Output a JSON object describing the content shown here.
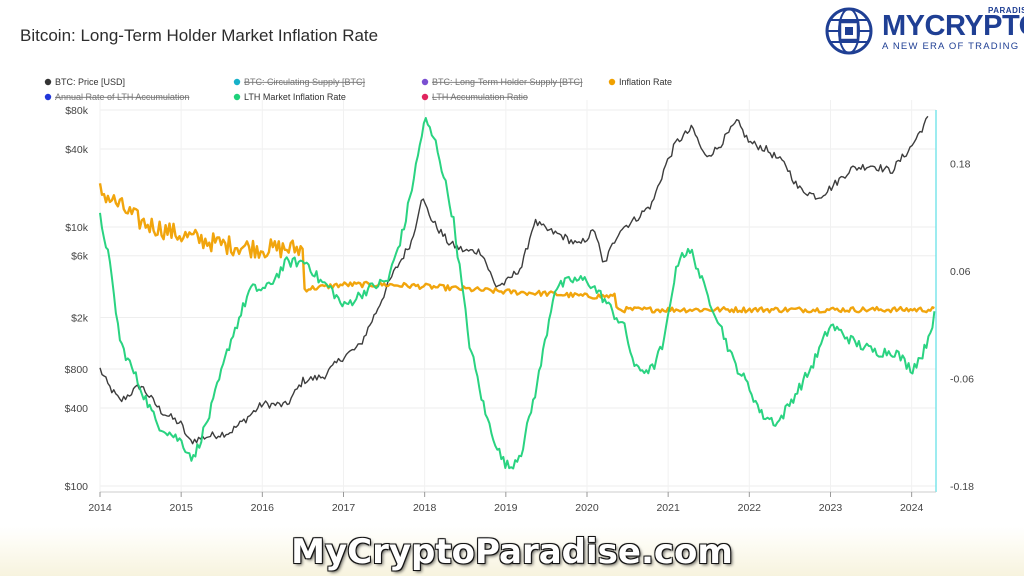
{
  "header": {
    "title": "Bitcoin: Long-Term Holder Market Inflation Rate"
  },
  "brand": {
    "name": "MYCRYPTO",
    "sub": "PARADISE",
    "tagline": "A NEW ERA OF TRADING",
    "color": "#1f3f94"
  },
  "watermark": {
    "text": "MyCryptoParadise.com"
  },
  "chart_data": {
    "type": "line",
    "title": "Bitcoin: Long-Term Holder Market Inflation Rate",
    "legend_position": "top",
    "legend": [
      {
        "name": "BTC: Price [USD]",
        "color": "#333333",
        "active": true
      },
      {
        "name": "BTC: Circulating Supply [BTC]",
        "color": "#17b1c9",
        "active": false
      },
      {
        "name": "BTC: Long-Term Holder Supply [BTC]",
        "color": "#7a4fd1",
        "active": false
      },
      {
        "name": "Inflation Rate",
        "color": "#f0a000",
        "active": true
      },
      {
        "name": "Annual Rate of LTH Accumulation",
        "color": "#2136d9",
        "active": false
      },
      {
        "name": "LTH Market Inflation Rate",
        "color": "#1fd17a",
        "active": true
      },
      {
        "name": "LTH Accumulation Ratio",
        "color": "#e0245e",
        "active": false
      }
    ],
    "x_axis": {
      "range": [
        2014,
        2024.3
      ],
      "ticks": [
        "2014",
        "2015",
        "2016",
        "2017",
        "2018",
        "2019",
        "2020",
        "2021",
        "2022",
        "2023",
        "2024"
      ]
    },
    "y_left": {
      "scale": "log",
      "range": [
        100,
        80000
      ],
      "ticks": [
        {
          "label": "$100",
          "value": 100
        },
        {
          "label": "$400",
          "value": 400
        },
        {
          "label": "$800",
          "value": 800
        },
        {
          "label": "$2k",
          "value": 2000
        },
        {
          "label": "$6k",
          "value": 6000
        },
        {
          "label": "$10k",
          "value": 10000
        },
        {
          "label": "$40k",
          "value": 40000
        },
        {
          "label": "$80k",
          "value": 80000
        }
      ]
    },
    "y_right": {
      "scale": "linear",
      "range": [
        -0.18,
        0.24
      ],
      "ticks": [
        {
          "label": "0.18",
          "value": 0.18
        },
        {
          "label": "0.06",
          "value": 0.06
        },
        {
          "label": "-0.06",
          "value": -0.06
        },
        {
          "label": "-0.18",
          "value": -0.18
        }
      ]
    },
    "grid": true,
    "series": [
      {
        "name": "BTC: Price [USD]",
        "axis": "left",
        "color": "#333333",
        "x": [
          2014.0,
          2014.1,
          2014.25,
          2014.5,
          2014.75,
          2015.0,
          2015.1,
          2015.3,
          2015.6,
          2015.8,
          2016.0,
          2016.3,
          2016.5,
          2016.75,
          2017.0,
          2017.2,
          2017.4,
          2017.6,
          2017.85,
          2017.96,
          2018.1,
          2018.3,
          2018.5,
          2018.7,
          2018.87,
          2019.0,
          2019.2,
          2019.35,
          2019.5,
          2019.7,
          2019.9,
          2020.1,
          2020.2,
          2020.4,
          2020.6,
          2020.8,
          2020.96,
          2021.1,
          2021.3,
          2021.45,
          2021.6,
          2021.85,
          2022.0,
          2022.2,
          2022.45,
          2022.6,
          2022.85,
          2023.0,
          2023.25,
          2023.5,
          2023.75,
          2024.0,
          2024.2
        ],
        "y": [
          800,
          600,
          450,
          600,
          380,
          300,
          220,
          240,
          260,
          330,
          430,
          420,
          650,
          700,
          1000,
          1200,
          2200,
          4200,
          8000,
          17000,
          11000,
          7500,
          6500,
          6500,
          3500,
          3700,
          5000,
          11000,
          9500,
          8500,
          7200,
          9500,
          5000,
          9500,
          11500,
          15000,
          29000,
          45000,
          58000,
          35000,
          40000,
          65000,
          45000,
          40000,
          30000,
          20000,
          17000,
          20000,
          28000,
          30000,
          27000,
          42000,
          69000
        ]
      },
      {
        "name": "Inflation Rate",
        "axis": "right",
        "color": "#f0a000",
        "x": [
          2014.0,
          2014.5,
          2015.0,
          2015.5,
          2016.0,
          2016.5,
          2016.52,
          2017.0,
          2017.5,
          2018.0,
          2018.5,
          2019.0,
          2019.5,
          2020.0,
          2020.35,
          2020.37,
          2021.0,
          2022.0,
          2023.0,
          2024.0,
          2024.28
        ],
        "y": [
          0.15,
          0.115,
          0.1,
          0.09,
          0.085,
          0.085,
          0.04,
          0.045,
          0.045,
          0.043,
          0.04,
          0.037,
          0.035,
          0.032,
          0.032,
          0.017,
          0.017,
          0.017,
          0.017,
          0.017,
          0.017
        ]
      },
      {
        "name": "LTH Market Inflation Rate",
        "axis": "right",
        "color": "#1fd17a",
        "x": [
          2014.0,
          2014.1,
          2014.25,
          2014.45,
          2014.7,
          2015.0,
          2015.15,
          2015.35,
          2015.6,
          2015.85,
          2016.05,
          2016.3,
          2016.55,
          2016.7,
          2016.85,
          2017.0,
          2017.3,
          2017.55,
          2017.75,
          2017.92,
          2018.0,
          2018.15,
          2018.35,
          2018.55,
          2018.75,
          2018.95,
          2019.05,
          2019.2,
          2019.4,
          2019.6,
          2019.8,
          2020.0,
          2020.2,
          2020.35,
          2020.45,
          2020.6,
          2020.8,
          2020.95,
          2021.05,
          2021.15,
          2021.3,
          2021.45,
          2021.6,
          2021.8,
          2022.0,
          2022.15,
          2022.35,
          2022.55,
          2022.75,
          2023.0,
          2023.3,
          2023.55,
          2023.8,
          2024.0,
          2024.15,
          2024.28
        ],
        "y": [
          0.12,
          0.08,
          -0.02,
          -0.06,
          -0.11,
          -0.13,
          -0.15,
          -0.1,
          -0.02,
          0.04,
          0.04,
          0.07,
          0.07,
          0.05,
          0.04,
          0.02,
          0.04,
          0.05,
          0.11,
          0.19,
          0.23,
          0.2,
          0.12,
          -0.02,
          -0.1,
          -0.15,
          -0.16,
          -0.14,
          -0.06,
          0.04,
          0.05,
          0.05,
          0.03,
          0.01,
          0.0,
          -0.05,
          -0.05,
          -0.02,
          0.04,
          0.08,
          0.08,
          0.04,
          0.01,
          -0.04,
          -0.07,
          -0.1,
          -0.11,
          -0.08,
          -0.05,
          0.0,
          -0.02,
          -0.03,
          -0.03,
          -0.05,
          -0.03,
          0.01
        ]
      }
    ]
  }
}
